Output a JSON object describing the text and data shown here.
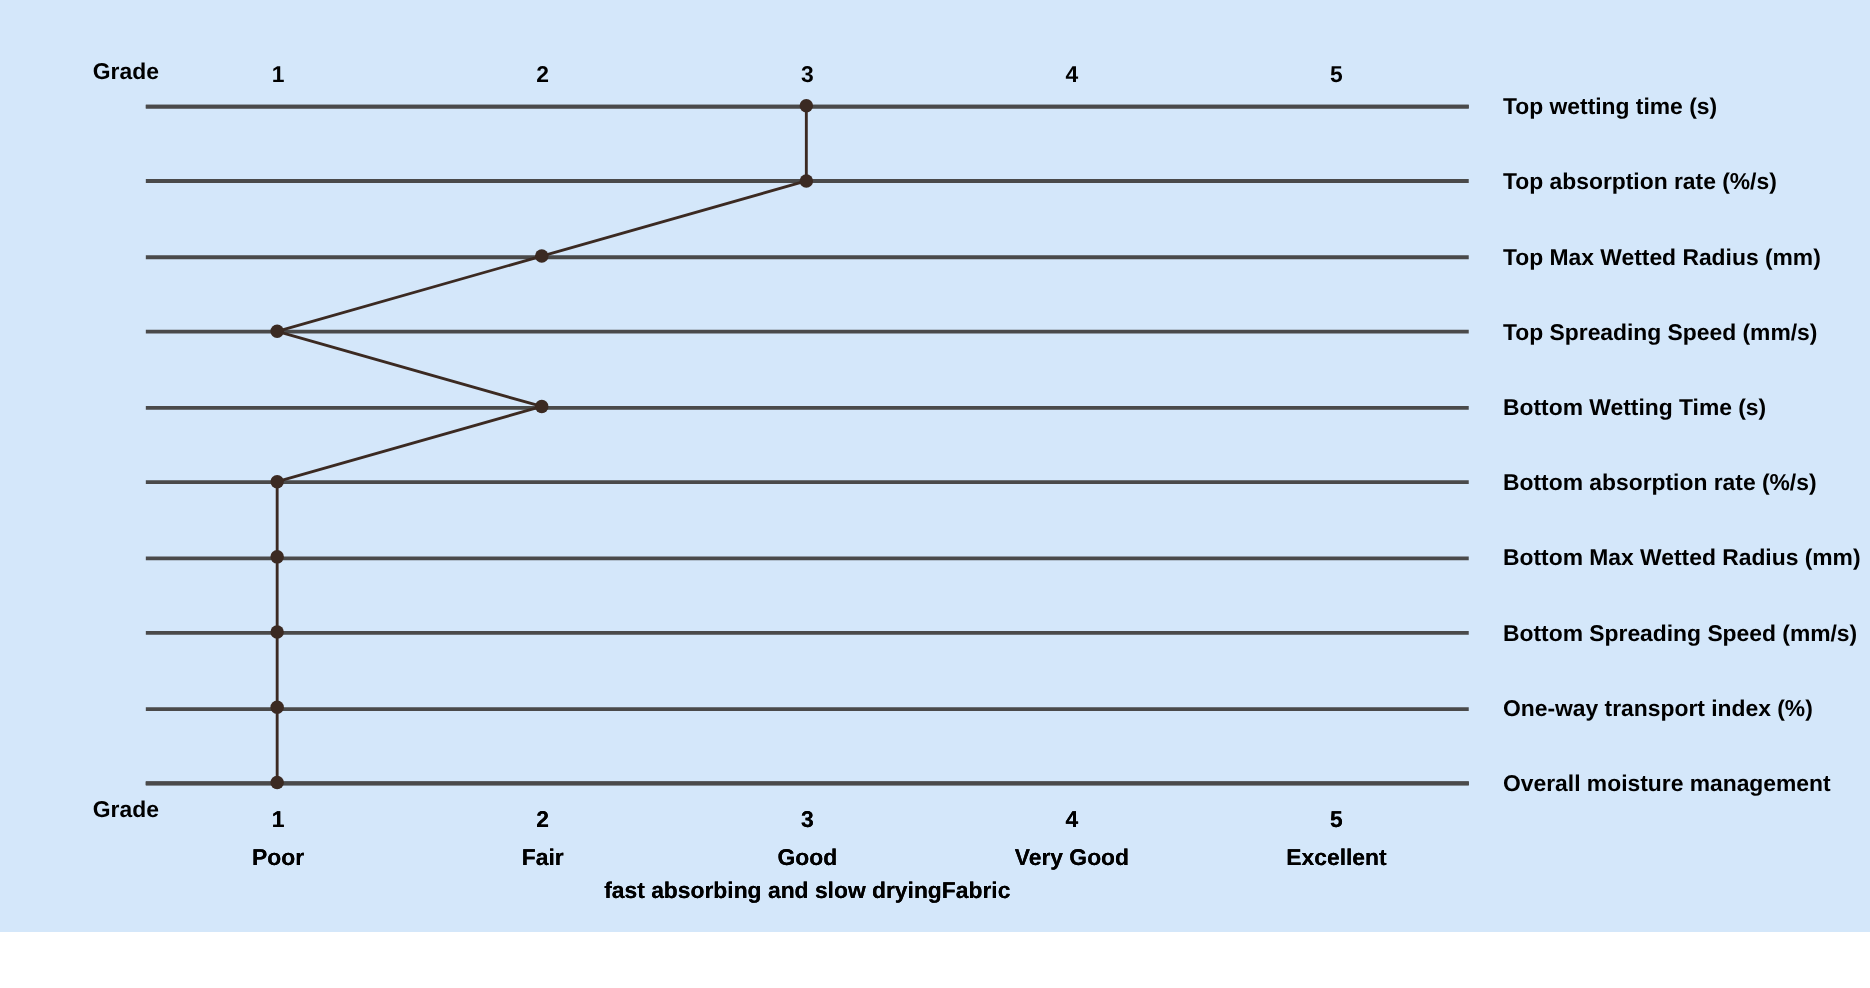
{
  "chart_data": {
    "type": "line",
    "orientation": "horizontal",
    "categories": [
      "Top wetting time (s)",
      "Top absorption rate (%/s)",
      "Top Max Wetted Radius (mm)",
      "Top Spreading Speed (mm/s)",
      "Bottom Wetting Time (s)",
      "Bottom absorption rate (%/s)",
      "Bottom Max Wetted Radius (mm)",
      "Bottom Spreading Speed (mm/s)",
      "One-way transport index (%)",
      "Overall moisture management"
    ],
    "values": [
      3,
      3,
      2,
      1,
      2,
      1,
      1,
      1,
      1,
      1
    ],
    "color": "#3b2a22",
    "marker": "circle",
    "line_style": "solid",
    "grid": "y",
    "xlim": [
      0.5,
      5.5
    ],
    "xticks": [
      {
        "value": 1,
        "label": "1\nPoor"
      },
      {
        "value": 2,
        "label": "2\nFair"
      },
      {
        "value": 3,
        "label": "3\nGood"
      },
      {
        "value": 4,
        "label": "4\nVery Good"
      },
      {
        "value": 5,
        "label": "5\nExcellent"
      }
    ],
    "x2lim": [
      0.5,
      5.5
    ],
    "x2ticks": [
      1,
      2,
      3,
      4,
      5
    ],
    "xlabel": "fast absorbing and slow dryingFabric",
    "annotations": [
      "Grade",
      "Grade"
    ]
  }
}
